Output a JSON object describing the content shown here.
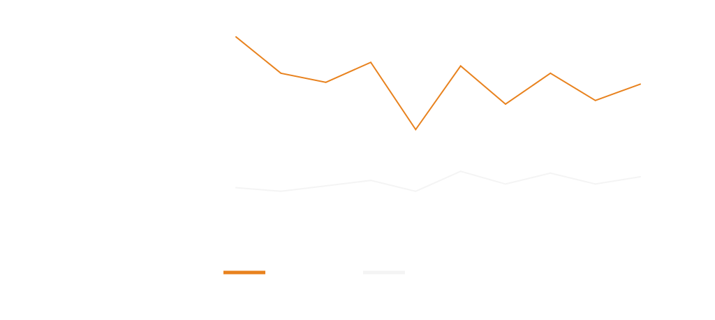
{
  "chart_data": {
    "type": "line",
    "title": "",
    "xlabel": "",
    "ylabel": "",
    "x": [
      "1",
      "2",
      "3",
      "4",
      "5",
      "6",
      "7",
      "8",
      "9",
      "10"
    ],
    "ylim": [
      0,
      100
    ],
    "grid": false,
    "legend_position": "bottom",
    "series": [
      {
        "name": "",
        "color": "#e8821e",
        "values": [
          92,
          72,
          67,
          78,
          41,
          76,
          55,
          72,
          57,
          66
        ]
      },
      {
        "name": "",
        "color": "#f4f4f4",
        "values": [
          9,
          7,
          10,
          13,
          7,
          18,
          11,
          17,
          11,
          15
        ]
      }
    ]
  }
}
